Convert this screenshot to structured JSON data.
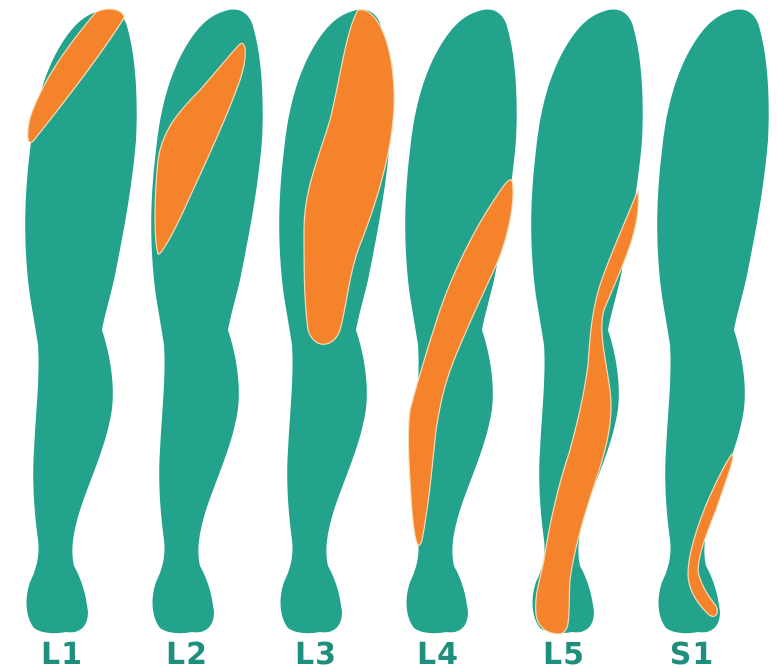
{
  "colors": {
    "leg": "#24a38c",
    "region": "#f5832b",
    "outline": "#f3dcb9",
    "label": "#1e8f7c"
  },
  "legs": [
    {
      "label": "L1"
    },
    {
      "label": "L2"
    },
    {
      "label": "L3"
    },
    {
      "label": "L4"
    },
    {
      "label": "L5"
    },
    {
      "label": "S1"
    }
  ]
}
